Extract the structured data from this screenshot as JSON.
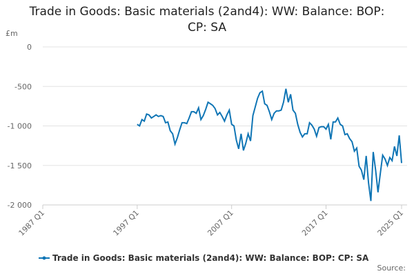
{
  "chart_data": {
    "type": "line",
    "title": "Trade in Goods: Basic materials (2and4): WW: Balance: BOP: CP: SA",
    "y_unit": "£m",
    "source": "Source:",
    "x": [
      "1997 Q1",
      "1997 Q2",
      "1997 Q3",
      "1997 Q4",
      "1998 Q1",
      "1998 Q2",
      "1998 Q3",
      "1998 Q4",
      "1999 Q1",
      "1999 Q2",
      "1999 Q3",
      "1999 Q4",
      "2000 Q1",
      "2000 Q2",
      "2000 Q3",
      "2000 Q4",
      "2001 Q1",
      "2001 Q2",
      "2001 Q3",
      "2001 Q4",
      "2002 Q1",
      "2002 Q2",
      "2002 Q3",
      "2002 Q4",
      "2003 Q1",
      "2003 Q2",
      "2003 Q3",
      "2003 Q4",
      "2004 Q1",
      "2004 Q2",
      "2004 Q3",
      "2004 Q4",
      "2005 Q1",
      "2005 Q2",
      "2005 Q3",
      "2005 Q4",
      "2006 Q1",
      "2006 Q2",
      "2006 Q3",
      "2006 Q4",
      "2007 Q1",
      "2007 Q2",
      "2007 Q3",
      "2007 Q4",
      "2008 Q1",
      "2008 Q2",
      "2008 Q3",
      "2008 Q4",
      "2009 Q1",
      "2009 Q2",
      "2009 Q3",
      "2009 Q4",
      "2010 Q1",
      "2010 Q2",
      "2010 Q3",
      "2010 Q4",
      "2011 Q1",
      "2011 Q2",
      "2011 Q3",
      "2011 Q4",
      "2012 Q1",
      "2012 Q2",
      "2012 Q3",
      "2012 Q4",
      "2013 Q1",
      "2013 Q2",
      "2013 Q3",
      "2013 Q4",
      "2014 Q1",
      "2014 Q2",
      "2014 Q3",
      "2014 Q4",
      "2015 Q1",
      "2015 Q2",
      "2015 Q3",
      "2015 Q4",
      "2016 Q1",
      "2016 Q2",
      "2016 Q3",
      "2016 Q4",
      "2017 Q1",
      "2017 Q2",
      "2017 Q3",
      "2017 Q4",
      "2018 Q1",
      "2018 Q2",
      "2018 Q3",
      "2018 Q4",
      "2019 Q1",
      "2019 Q2",
      "2019 Q3",
      "2019 Q4",
      "2020 Q1",
      "2020 Q2",
      "2020 Q3",
      "2020 Q4",
      "2021 Q1",
      "2021 Q2",
      "2021 Q3",
      "2021 Q4",
      "2022 Q1",
      "2022 Q2",
      "2022 Q3",
      "2022 Q4",
      "2023 Q1",
      "2023 Q2",
      "2023 Q3",
      "2023 Q4",
      "2024 Q1",
      "2024 Q2",
      "2024 Q3",
      "2024 Q4",
      "2025 Q1"
    ],
    "series": [
      {
        "name": "Trade in Goods: Basic materials (2and4): WW: Balance: BOP: CP: SA",
        "color": "#0f75b5",
        "values": [
          -980,
          -1000,
          -920,
          -940,
          -850,
          -860,
          -900,
          -880,
          -860,
          -880,
          -870,
          -880,
          -960,
          -950,
          -1060,
          -1100,
          -1230,
          -1150,
          -1050,
          -960,
          -960,
          -970,
          -900,
          -820,
          -820,
          -840,
          -770,
          -920,
          -870,
          -790,
          -700,
          -720,
          -740,
          -780,
          -860,
          -830,
          -880,
          -940,
          -860,
          -800,
          -980,
          -1000,
          -1180,
          -1290,
          -1100,
          -1310,
          -1220,
          -1100,
          -1190,
          -870,
          -760,
          -650,
          -580,
          -560,
          -720,
          -740,
          -820,
          -920,
          -840,
          -810,
          -810,
          -800,
          -700,
          -530,
          -700,
          -600,
          -800,
          -840,
          -980,
          -1080,
          -1140,
          -1100,
          -1100,
          -960,
          -990,
          -1040,
          -1130,
          -1020,
          -1010,
          -1010,
          -1040,
          -980,
          -1170,
          -950,
          -950,
          -900,
          -980,
          -1000,
          -1110,
          -1100,
          -1160,
          -1200,
          -1320,
          -1280,
          -1510,
          -1560,
          -1680,
          -1380,
          -1720,
          -1950,
          -1330,
          -1560,
          -1840,
          -1600,
          -1370,
          -1420,
          -1500,
          -1400,
          -1440,
          -1260,
          -1380,
          -1120,
          -1470
        ]
      }
    ],
    "xlim": [
      "1987 Q1",
      "2025 Q1"
    ],
    "xticks": [
      "1987 Q1",
      "1997 Q1",
      "2007 Q1",
      "2017 Q1",
      "2025 Q1"
    ],
    "ylim": [
      -2000,
      0
    ],
    "yticks": [
      0,
      -500,
      {
        "value": -1000,
        "label": "-1 000"
      },
      {
        "value": -1500,
        "label": "-1 500"
      },
      {
        "value": -2000,
        "label": "-2 000"
      }
    ],
    "grid": true
  }
}
